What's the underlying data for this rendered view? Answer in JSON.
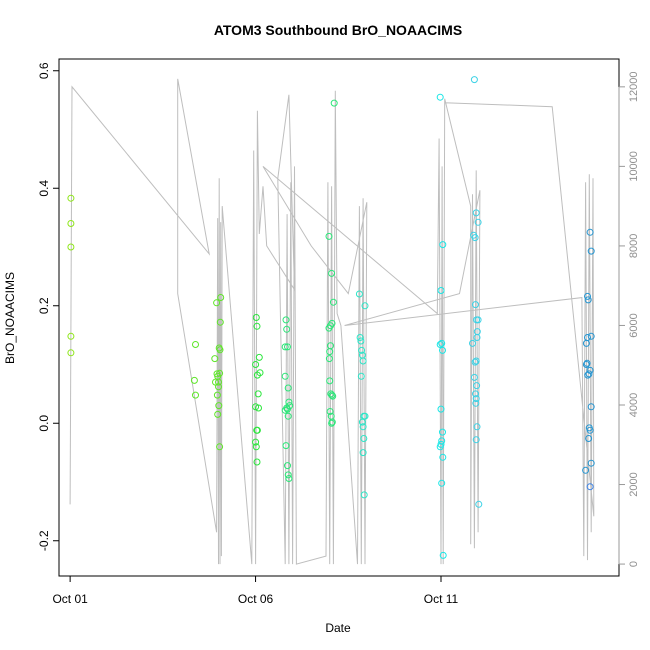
{
  "chart_data": {
    "type": "scatter",
    "title": "ATOM3 Southbound BrO_NOAACIMS",
    "xlabel": "Date",
    "ylabel": "BrO_NOAACIMS",
    "x_unit": "days (October 2017)",
    "xlim": [
      0.7,
      15.8
    ],
    "ylim": [
      -0.26,
      0.62
    ],
    "x_ticks": [
      {
        "value": 1,
        "label": "Oct 01"
      },
      {
        "value": 6,
        "label": "Oct 06"
      },
      {
        "value": 11,
        "label": "Oct 11"
      }
    ],
    "y_ticks": [
      {
        "value": -0.2,
        "label": "-0.2"
      },
      {
        "value": 0.0,
        "label": "0.0"
      },
      {
        "value": 0.2,
        "label": "0.2"
      },
      {
        "value": 0.4,
        "label": "0.4"
      },
      {
        "value": 0.6,
        "label": "0.6"
      }
    ],
    "right_axis": {
      "lim": [
        -300,
        12700
      ],
      "ticks": [
        {
          "value": 0,
          "label": "0"
        },
        {
          "value": 2000,
          "label": "2000"
        },
        {
          "value": 4000,
          "label": "4000"
        },
        {
          "value": 6000,
          "label": "6000"
        },
        {
          "value": 8000,
          "label": "8000"
        },
        {
          "value": 10000,
          "label": "10000"
        },
        {
          "value": 12000,
          "label": "12000"
        }
      ],
      "color": "#bebebe"
    },
    "grid": false,
    "legend": "none",
    "point_colors": [
      "#8ee619",
      "#5ee628",
      "#2be63c",
      "#2be678",
      "#2be6c8",
      "#1ae6e6",
      "#3cd2e6",
      "#2596d2",
      "#3c82e6"
    ],
    "points": [
      {
        "x": 1.02,
        "y": 0.383,
        "c": 0
      },
      {
        "x": 1.02,
        "y": 0.34,
        "c": 0
      },
      {
        "x": 1.02,
        "y": 0.3,
        "c": 0
      },
      {
        "x": 1.02,
        "y": 0.148,
        "c": 0
      },
      {
        "x": 1.02,
        "y": 0.12,
        "c": 0
      },
      {
        "x": 4.38,
        "y": 0.134,
        "c": 1
      },
      {
        "x": 4.35,
        "y": 0.073,
        "c": 1
      },
      {
        "x": 4.38,
        "y": 0.048,
        "c": 1
      },
      {
        "x": 4.9,
        "y": 0.11,
        "c": 1
      },
      {
        "x": 4.92,
        "y": 0.07,
        "c": 1
      },
      {
        "x": 4.95,
        "y": 0.205,
        "c": 1
      },
      {
        "x": 4.96,
        "y": 0.084,
        "c": 1
      },
      {
        "x": 4.98,
        "y": 0.08,
        "c": 1
      },
      {
        "x": 5.0,
        "y": 0.07,
        "c": 1
      },
      {
        "x": 5.0,
        "y": 0.062,
        "c": 1
      },
      {
        "x": 5.02,
        "y": 0.128,
        "c": 1
      },
      {
        "x": 5.03,
        "y": 0.085,
        "c": 1
      },
      {
        "x": 5.05,
        "y": 0.172,
        "c": 1
      },
      {
        "x": 5.06,
        "y": 0.214,
        "c": 1
      },
      {
        "x": 4.97,
        "y": 0.048,
        "c": 1
      },
      {
        "x": 5.01,
        "y": 0.03,
        "c": 1
      },
      {
        "x": 4.98,
        "y": 0.015,
        "c": 1
      },
      {
        "x": 5.03,
        "y": -0.04,
        "c": 1
      },
      {
        "x": 5.04,
        "y": 0.125,
        "c": 1
      },
      {
        "x": 6.0,
        "y": 0.1,
        "c": 2
      },
      {
        "x": 6.02,
        "y": 0.18,
        "c": 2
      },
      {
        "x": 6.04,
        "y": 0.165,
        "c": 2
      },
      {
        "x": 6.05,
        "y": 0.082,
        "c": 2
      },
      {
        "x": 6.07,
        "y": 0.05,
        "c": 2
      },
      {
        "x": 6.08,
        "y": 0.026,
        "c": 2
      },
      {
        "x": 6.1,
        "y": 0.112,
        "c": 2
      },
      {
        "x": 6.12,
        "y": 0.086,
        "c": 2
      },
      {
        "x": 6.03,
        "y": -0.012,
        "c": 2
      },
      {
        "x": 6.05,
        "y": -0.012,
        "c": 2
      },
      {
        "x": 6.0,
        "y": -0.032,
        "c": 2
      },
      {
        "x": 6.02,
        "y": -0.04,
        "c": 2
      },
      {
        "x": 6.04,
        "y": -0.066,
        "c": 2
      },
      {
        "x": 6.0,
        "y": 0.028,
        "c": 2
      },
      {
        "x": 6.8,
        "y": 0.13,
        "c": 3
      },
      {
        "x": 6.82,
        "y": 0.176,
        "c": 3
      },
      {
        "x": 6.84,
        "y": 0.16,
        "c": 3
      },
      {
        "x": 6.86,
        "y": 0.13,
        "c": 3
      },
      {
        "x": 6.8,
        "y": 0.08,
        "c": 3
      },
      {
        "x": 6.88,
        "y": 0.06,
        "c": 3
      },
      {
        "x": 6.9,
        "y": 0.036,
        "c": 3
      },
      {
        "x": 6.92,
        "y": 0.03,
        "c": 3
      },
      {
        "x": 6.84,
        "y": 0.026,
        "c": 3
      },
      {
        "x": 6.88,
        "y": 0.012,
        "c": 3
      },
      {
        "x": 6.86,
        "y": 0.024,
        "c": 3
      },
      {
        "x": 6.8,
        "y": 0.022,
        "c": 3
      },
      {
        "x": 6.82,
        "y": -0.038,
        "c": 3
      },
      {
        "x": 6.86,
        "y": -0.072,
        "c": 3
      },
      {
        "x": 6.88,
        "y": -0.088,
        "c": 3
      },
      {
        "x": 6.9,
        "y": -0.094,
        "c": 3
      },
      {
        "x": 7.98,
        "y": 0.318,
        "c": 3
      },
      {
        "x": 8.05,
        "y": 0.255,
        "c": 3
      },
      {
        "x": 8.1,
        "y": 0.206,
        "c": 3
      },
      {
        "x": 7.98,
        "y": 0.162,
        "c": 3
      },
      {
        "x": 8.02,
        "y": 0.166,
        "c": 3
      },
      {
        "x": 8.06,
        "y": 0.17,
        "c": 3
      },
      {
        "x": 7.99,
        "y": 0.11,
        "c": 3
      },
      {
        "x": 8.0,
        "y": 0.122,
        "c": 3
      },
      {
        "x": 8.02,
        "y": 0.132,
        "c": 3
      },
      {
        "x": 8.0,
        "y": 0.072,
        "c": 3
      },
      {
        "x": 8.03,
        "y": 0.05,
        "c": 3
      },
      {
        "x": 8.06,
        "y": 0.048,
        "c": 3
      },
      {
        "x": 8.08,
        "y": 0.046,
        "c": 3
      },
      {
        "x": 8.01,
        "y": 0.02,
        "c": 3
      },
      {
        "x": 8.04,
        "y": 0.012,
        "c": 3
      },
      {
        "x": 8.07,
        "y": 0.002,
        "c": 3
      },
      {
        "x": 8.05,
        "y": 0.0,
        "c": 3
      },
      {
        "x": 8.12,
        "y": 0.545,
        "c": 3
      },
      {
        "x": 8.8,
        "y": 0.22,
        "c": 4
      },
      {
        "x": 8.95,
        "y": 0.2,
        "c": 4
      },
      {
        "x": 8.82,
        "y": 0.146,
        "c": 4
      },
      {
        "x": 8.84,
        "y": 0.14,
        "c": 4
      },
      {
        "x": 8.86,
        "y": 0.124,
        "c": 4
      },
      {
        "x": 8.88,
        "y": 0.116,
        "c": 4
      },
      {
        "x": 8.9,
        "y": 0.106,
        "c": 4
      },
      {
        "x": 8.85,
        "y": 0.08,
        "c": 4
      },
      {
        "x": 8.88,
        "y": 0.002,
        "c": 4
      },
      {
        "x": 8.9,
        "y": -0.006,
        "c": 4
      },
      {
        "x": 8.92,
        "y": 0.012,
        "c": 4
      },
      {
        "x": 8.95,
        "y": 0.012,
        "c": 4
      },
      {
        "x": 8.92,
        "y": -0.026,
        "c": 4
      },
      {
        "x": 8.9,
        "y": -0.05,
        "c": 4
      },
      {
        "x": 8.93,
        "y": -0.122,
        "c": 4
      },
      {
        "x": 10.98,
        "y": 0.555,
        "c": 5
      },
      {
        "x": 11.05,
        "y": 0.304,
        "c": 5
      },
      {
        "x": 11.0,
        "y": 0.226,
        "c": 5
      },
      {
        "x": 11.02,
        "y": 0.136,
        "c": 5
      },
      {
        "x": 11.04,
        "y": 0.124,
        "c": 5
      },
      {
        "x": 10.98,
        "y": 0.134,
        "c": 5
      },
      {
        "x": 11.0,
        "y": 0.024,
        "c": 5
      },
      {
        "x": 11.02,
        "y": -0.03,
        "c": 5
      },
      {
        "x": 11.0,
        "y": -0.036,
        "c": 5
      },
      {
        "x": 10.98,
        "y": -0.04,
        "c": 5
      },
      {
        "x": 11.04,
        "y": -0.015,
        "c": 5
      },
      {
        "x": 11.05,
        "y": -0.058,
        "c": 5
      },
      {
        "x": 11.02,
        "y": -0.102,
        "c": 5
      },
      {
        "x": 11.06,
        "y": -0.225,
        "c": 5
      },
      {
        "x": 11.9,
        "y": 0.585,
        "c": 6
      },
      {
        "x": 11.95,
        "y": 0.358,
        "c": 6
      },
      {
        "x": 12.0,
        "y": 0.342,
        "c": 6
      },
      {
        "x": 11.92,
        "y": 0.316,
        "c": 6
      },
      {
        "x": 11.88,
        "y": 0.32,
        "c": 6
      },
      {
        "x": 11.93,
        "y": 0.202,
        "c": 6
      },
      {
        "x": 11.96,
        "y": 0.176,
        "c": 6
      },
      {
        "x": 12.0,
        "y": 0.176,
        "c": 6
      },
      {
        "x": 11.98,
        "y": 0.156,
        "c": 6
      },
      {
        "x": 11.97,
        "y": 0.146,
        "c": 6
      },
      {
        "x": 11.85,
        "y": 0.136,
        "c": 6
      },
      {
        "x": 11.92,
        "y": 0.104,
        "c": 6
      },
      {
        "x": 11.95,
        "y": 0.106,
        "c": 6
      },
      {
        "x": 11.9,
        "y": 0.078,
        "c": 6
      },
      {
        "x": 11.96,
        "y": 0.064,
        "c": 6
      },
      {
        "x": 11.93,
        "y": 0.05,
        "c": 6
      },
      {
        "x": 11.95,
        "y": 0.042,
        "c": 6
      },
      {
        "x": 11.94,
        "y": 0.034,
        "c": 6
      },
      {
        "x": 11.97,
        "y": -0.006,
        "c": 6
      },
      {
        "x": 11.95,
        "y": -0.028,
        "c": 6
      },
      {
        "x": 12.02,
        "y": -0.138,
        "c": 6
      },
      {
        "x": 14.95,
        "y": 0.216,
        "c": 7
      },
      {
        "x": 14.97,
        "y": 0.21,
        "c": 7
      },
      {
        "x": 15.02,
        "y": 0.325,
        "c": 7
      },
      {
        "x": 15.05,
        "y": 0.293,
        "c": 7
      },
      {
        "x": 14.92,
        "y": 0.136,
        "c": 7
      },
      {
        "x": 14.95,
        "y": 0.146,
        "c": 7
      },
      {
        "x": 15.05,
        "y": 0.148,
        "c": 7
      },
      {
        "x": 14.92,
        "y": 0.1,
        "c": 7
      },
      {
        "x": 14.94,
        "y": 0.102,
        "c": 7
      },
      {
        "x": 14.96,
        "y": 0.082,
        "c": 7
      },
      {
        "x": 14.99,
        "y": 0.084,
        "c": 7
      },
      {
        "x": 15.02,
        "y": 0.09,
        "c": 7
      },
      {
        "x": 15.05,
        "y": 0.028,
        "c": 7
      },
      {
        "x": 15.0,
        "y": -0.008,
        "c": 7
      },
      {
        "x": 15.02,
        "y": -0.012,
        "c": 7
      },
      {
        "x": 14.98,
        "y": -0.026,
        "c": 7
      },
      {
        "x": 14.9,
        "y": -0.08,
        "c": 7
      },
      {
        "x": 15.05,
        "y": -0.068,
        "c": 7
      },
      {
        "x": 15.02,
        "y": -0.108,
        "c": 8
      }
    ],
    "altitude_line": [
      [
        1.0,
        1500
      ],
      [
        1.05,
        12000
      ],
      [
        4.75,
        7800
      ],
      [
        3.9,
        12200
      ],
      [
        3.9,
        6800
      ],
      [
        4.95,
        800
      ],
      [
        4.98,
        8700
      ],
      [
        5.0,
        0
      ],
      [
        5.02,
        9700
      ],
      [
        5.04,
        0
      ],
      [
        5.06,
        8600
      ],
      [
        5.08,
        200
      ],
      [
        5.1,
        9000
      ],
      [
        5.9,
        0
      ],
      [
        5.95,
        10400
      ],
      [
        6.0,
        0
      ],
      [
        6.05,
        11400
      ],
      [
        6.1,
        8300
      ],
      [
        6.2,
        9500
      ],
      [
        6.3,
        8000
      ],
      [
        7.05,
        6900
      ],
      [
        6.9,
        11800
      ],
      [
        6.6,
        9700
      ],
      [
        6.8,
        0
      ],
      [
        6.85,
        8800
      ],
      [
        6.9,
        0
      ],
      [
        6.95,
        9600
      ],
      [
        7.0,
        0
      ],
      [
        7.05,
        10000
      ],
      [
        7.1,
        0
      ],
      [
        7.9,
        200
      ],
      [
        7.95,
        9600
      ],
      [
        8.0,
        0
      ],
      [
        8.05,
        9500
      ],
      [
        8.1,
        0
      ],
      [
        8.15,
        11900
      ],
      [
        8.2,
        6300
      ],
      [
        8.3,
        6000
      ],
      [
        8.75,
        0
      ],
      [
        8.8,
        9000
      ],
      [
        8.85,
        0
      ],
      [
        8.9,
        9200
      ],
      [
        8.95,
        0
      ],
      [
        9.0,
        9100
      ],
      [
        8.5,
        6800
      ],
      [
        7.5,
        8000
      ],
      [
        6.2,
        10000
      ],
      [
        10.9,
        6300
      ],
      [
        10.95,
        10700
      ],
      [
        11.0,
        0
      ],
      [
        11.03,
        10000
      ],
      [
        11.06,
        0
      ],
      [
        11.1,
        11700
      ],
      [
        11.8,
        9000
      ],
      [
        11.8,
        500
      ],
      [
        11.85,
        9300
      ],
      [
        11.9,
        400
      ],
      [
        11.95,
        9900
      ],
      [
        12.0,
        800
      ],
      [
        12.05,
        9400
      ],
      [
        11.5,
        6800
      ],
      [
        8.4,
        6000
      ],
      [
        14.8,
        6700
      ],
      [
        14.85,
        200
      ],
      [
        14.9,
        9600
      ],
      [
        14.95,
        100
      ],
      [
        15.0,
        9800
      ],
      [
        15.05,
        800
      ],
      [
        15.1,
        9700
      ],
      [
        15.12,
        1200
      ],
      [
        14.0,
        11500
      ],
      [
        11.1,
        11600
      ]
    ]
  }
}
